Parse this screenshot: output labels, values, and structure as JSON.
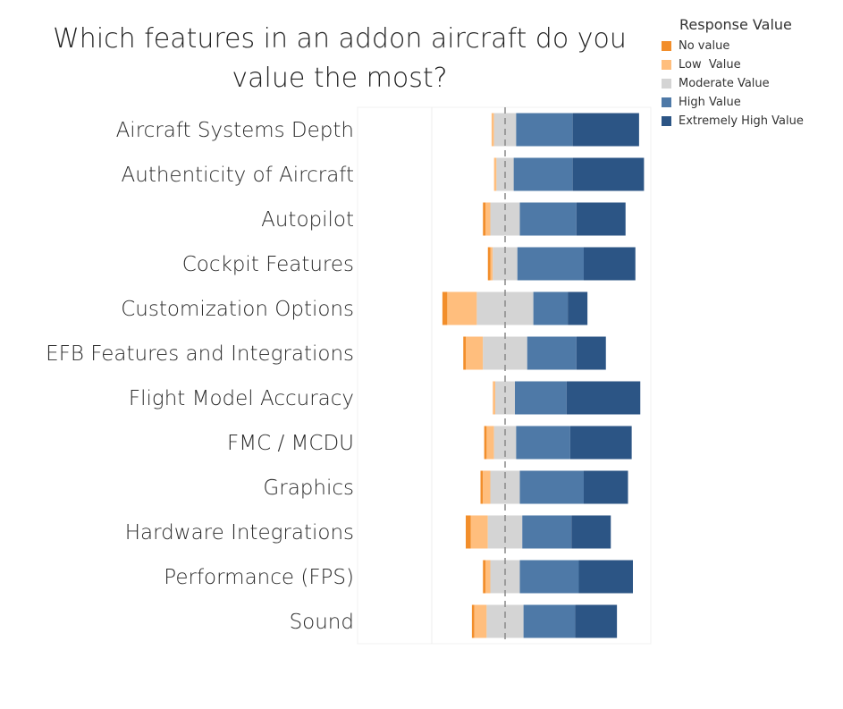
{
  "chart_data": {
    "type": "bar",
    "subtype": "diverging-stacked-horizontal",
    "title": "Which features in an addon aircraft do you value the most?",
    "legend_title": "Response Value",
    "legend_position": "top-right",
    "categories": [
      "Aircraft Systems Depth",
      "Authenticity of Aircraft",
      "Autopilot",
      "Cockpit Features",
      "Customization Options",
      "EFB Features and Integrations",
      "Flight Model Accuracy",
      "FMC / MCDU",
      "Graphics",
      "Hardware Integrations",
      "Performance (FPS)",
      "Sound"
    ],
    "series": [
      {
        "name": "No value",
        "color": "#f28e2b",
        "values": [
          0,
          0,
          1,
          1,
          2,
          1,
          0,
          1,
          1,
          2,
          1,
          1
        ]
      },
      {
        "name": "Low  Value",
        "color": "#ffbe7d",
        "values": [
          1,
          1,
          2,
          1,
          12,
          7,
          1,
          3,
          3,
          7,
          2,
          5
        ]
      },
      {
        "name": "Moderate Value",
        "color": "#d4d4d4",
        "values": [
          9,
          7,
          12,
          10,
          23,
          18,
          8,
          9,
          12,
          14,
          12,
          15
        ]
      },
      {
        "name": "High Value",
        "color": "#4e79a7",
        "values": [
          23,
          24,
          23,
          27,
          14,
          20,
          21,
          22,
          26,
          20,
          24,
          21
        ]
      },
      {
        "name": "Extremely High Value",
        "color": "#2c5585",
        "values": [
          27,
          29,
          20,
          21,
          8,
          12,
          30,
          25,
          18,
          16,
          22,
          17
        ]
      }
    ],
    "center_reference": "midpoint of Moderate Value",
    "xlabel": "",
    "ylabel": "",
    "grid": false
  }
}
